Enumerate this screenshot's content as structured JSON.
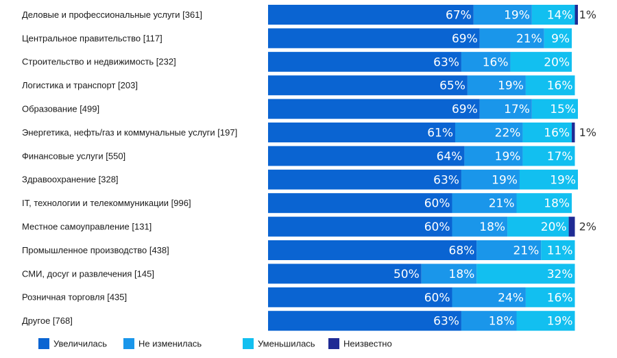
{
  "chart_data": {
    "type": "bar",
    "orientation": "horizontal",
    "stacked": true,
    "percent": true,
    "title": "",
    "xlabel": "",
    "ylabel": "",
    "xlim": [
      0,
      100
    ],
    "grid": false,
    "legend_position": "bottom",
    "categories": [
      "Деловые и профессиональные услуги [361]",
      "Центральное правительство [117]",
      "Строительство и недвижимость [232]",
      "Логистика и транспорт [203]",
      "Образование [499]",
      "Энергетика, нефть/газ и коммунальные услуги [197]",
      "Финансовые услуги [550]",
      "Здравоохранение [328]",
      "IT, технологии и телекоммуникации [996]",
      "Местное самоуправление [131]",
      "Промышленное производство [438]",
      "СМИ, досуг и развлечения [145]",
      "Розничная торговля [435]",
      "Другое [768]"
    ],
    "series": [
      {
        "name": "Увеличилась",
        "color": "#0a64d2",
        "values": [
          67,
          69,
          63,
          65,
          69,
          61,
          64,
          63,
          60,
          60,
          68,
          50,
          60,
          63
        ]
      },
      {
        "name": "Не изменилась",
        "color": "#1a96ea",
        "values": [
          19,
          21,
          16,
          19,
          17,
          22,
          19,
          19,
          21,
          18,
          21,
          18,
          24,
          18
        ]
      },
      {
        "name": "Уменьшилась",
        "color": "#12bff0",
        "values": [
          14,
          9,
          20,
          16,
          15,
          16,
          17,
          19,
          18,
          20,
          11,
          32,
          16,
          19
        ]
      },
      {
        "name": "Неизвестно",
        "color": "#1f2b94",
        "values": [
          1,
          0,
          0,
          0,
          0,
          1,
          0,
          0,
          0,
          2,
          0,
          0,
          0,
          0
        ]
      }
    ]
  }
}
